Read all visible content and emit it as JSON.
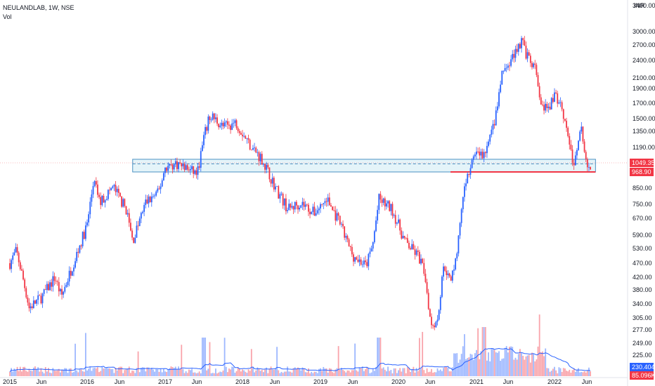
{
  "header": {
    "symbol_line": "NEULANDLAB, 1W, NSE",
    "vol_label": "Vol"
  },
  "currency": "INR",
  "chart_data": {
    "type": "candlestick",
    "symbol": "NEULANDLAB",
    "interval": "1W",
    "exchange": "NSE",
    "y_scale": "log",
    "ylim": [
      200,
      3500
    ],
    "y_ticks": [
      "3400.00",
      "3000.00",
      "2700.00",
      "2400.00",
      "2100.00",
      "1900.00",
      "1700.00",
      "1500.00",
      "1350.00",
      "1190.00",
      "1049.35",
      "968.90",
      "850.00",
      "750.00",
      "670.00",
      "590.00",
      "530.00",
      "470.00",
      "420.00",
      "380.00",
      "340.00",
      "305.00",
      "277.00",
      "249.00",
      "225.00",
      "230.404K",
      "85.096K"
    ],
    "x_ticks": [
      "2015",
      "Jun",
      "2016",
      "Jun",
      "2017",
      "Jun",
      "2018",
      "Jun",
      "2019",
      "Jun",
      "2020",
      "Jun",
      "2021",
      "Jun",
      "2022",
      "Jun"
    ],
    "xlim": [
      "2015-01",
      "2022-07"
    ],
    "price_keypoints": [
      [
        "2015-01",
        470
      ],
      [
        "2015-02",
        520
      ],
      [
        "2015-03",
        420
      ],
      [
        "2015-04",
        330
      ],
      [
        "2015-06",
        360
      ],
      [
        "2015-08",
        420
      ],
      [
        "2015-09",
        360
      ],
      [
        "2015-11",
        480
      ],
      [
        "2016-01",
        640
      ],
      [
        "2016-02",
        900
      ],
      [
        "2016-03",
        760
      ],
      [
        "2016-05",
        860
      ],
      [
        "2016-07",
        720
      ],
      [
        "2016-08",
        560
      ],
      [
        "2016-10",
        760
      ],
      [
        "2016-12",
        820
      ],
      [
        "2017-01",
        1010
      ],
      [
        "2017-03",
        1040
      ],
      [
        "2017-05",
        980
      ],
      [
        "2017-06",
        960
      ],
      [
        "2017-07",
        1280
      ],
      [
        "2017-08",
        1550
      ],
      [
        "2017-10",
        1400
      ],
      [
        "2017-12",
        1450
      ],
      [
        "2018-02",
        1230
      ],
      [
        "2018-04",
        1080
      ],
      [
        "2018-06",
        860
      ],
      [
        "2018-08",
        720
      ],
      [
        "2018-10",
        760
      ],
      [
        "2018-12",
        700
      ],
      [
        "2019-02",
        780
      ],
      [
        "2019-04",
        640
      ],
      [
        "2019-06",
        500
      ],
      [
        "2019-08",
        460
      ],
      [
        "2019-09",
        540
      ],
      [
        "2019-10",
        780
      ],
      [
        "2019-12",
        720
      ],
      [
        "2020-02",
        560
      ],
      [
        "2020-04",
        500
      ],
      [
        "2020-05",
        440
      ],
      [
        "2020-06",
        290
      ],
      [
        "2020-07",
        300
      ],
      [
        "2020-08",
        470
      ],
      [
        "2020-09",
        400
      ],
      [
        "2020-10",
        520
      ],
      [
        "2020-11",
        800
      ],
      [
        "2020-12",
        1000
      ],
      [
        "2021-01",
        1150
      ],
      [
        "2021-02",
        1100
      ],
      [
        "2021-03",
        1250
      ],
      [
        "2021-04",
        1550
      ],
      [
        "2021-05",
        2200
      ],
      [
        "2021-06",
        2300
      ],
      [
        "2021-07",
        2600
      ],
      [
        "2021-08",
        2800
      ],
      [
        "2021-09",
        2400
      ],
      [
        "2021-10",
        2250
      ],
      [
        "2021-11",
        1650
      ],
      [
        "2021-12",
        1600
      ],
      [
        "2022-01",
        1800
      ],
      [
        "2022-02",
        1700
      ],
      [
        "2022-03",
        1350
      ],
      [
        "2022-04",
        1000
      ],
      [
        "2022-05",
        1450
      ],
      [
        "2022-06",
        980
      ],
      [
        "2022-07",
        1049.35
      ]
    ],
    "zone": {
      "from": "2016-08",
      "to": "2022-07",
      "upper": 1080,
      "lower": 968.9,
      "mid": 1040
    },
    "support_level": {
      "from": "2020-09",
      "to": "2022-07",
      "value": 968.9
    },
    "current_price": 1049.35,
    "volume_labels": [
      "230.404K",
      "85.096K"
    ]
  }
}
